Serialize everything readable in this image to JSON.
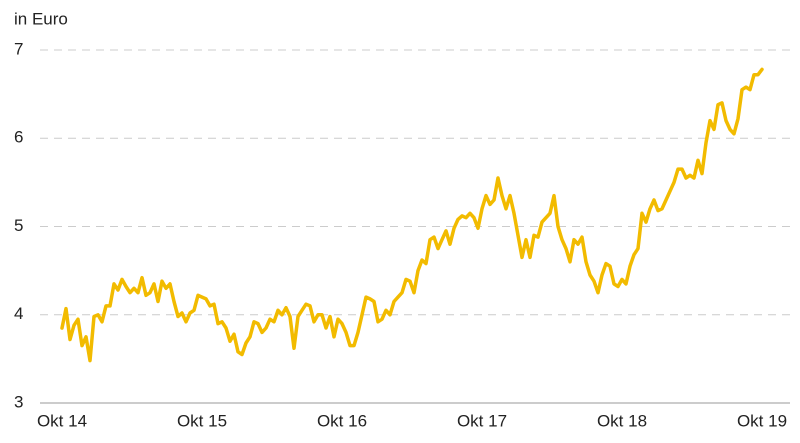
{
  "chart_data": {
    "type": "line",
    "y_label": "in Euro",
    "categories": [
      "Okt 14",
      null,
      null,
      null,
      null,
      null,
      null,
      null,
      null,
      null,
      null,
      null,
      null,
      null,
      null,
      null,
      null,
      null,
      null,
      null,
      null,
      null,
      null,
      null,
      null,
      null,
      null,
      null,
      null,
      null,
      null,
      null,
      null,
      null,
      null,
      "Okt 15",
      null,
      null,
      null,
      null,
      null,
      null,
      null,
      null,
      null,
      null,
      null,
      null,
      null,
      null,
      null,
      null,
      null,
      null,
      null,
      null,
      null,
      null,
      null,
      null,
      null,
      null,
      null,
      null,
      null,
      null,
      null,
      null,
      null,
      null,
      "Okt 16",
      null,
      null,
      null,
      null,
      null,
      null,
      null,
      null,
      null,
      null,
      null,
      null,
      null,
      null,
      null,
      null,
      null,
      null,
      null,
      null,
      null,
      null,
      null,
      null,
      null,
      null,
      null,
      null,
      null,
      null,
      null,
      null,
      null,
      null,
      "Okt 17",
      null,
      null,
      null,
      null,
      null,
      null,
      null,
      null,
      null,
      null,
      null,
      null,
      null,
      null,
      null,
      null,
      null,
      null,
      null,
      null,
      null,
      null,
      null,
      null,
      null,
      null,
      null,
      null,
      null,
      null,
      null,
      null,
      null,
      null,
      "Okt 18",
      null,
      null,
      null,
      null,
      null,
      null,
      null,
      null,
      null,
      null,
      null,
      null,
      null,
      null,
      null,
      null,
      null,
      null,
      null,
      null,
      null,
      null,
      null,
      null,
      null,
      null,
      null,
      null,
      null,
      null,
      null,
      null,
      null,
      null,
      "Okt 19"
    ],
    "values": [
      3.85,
      4.07,
      3.72,
      3.88,
      3.95,
      3.65,
      3.75,
      3.48,
      3.98,
      4.0,
      3.92,
      4.1,
      4.1,
      4.35,
      4.28,
      4.4,
      4.32,
      4.25,
      4.3,
      4.25,
      4.42,
      4.22,
      4.25,
      4.35,
      4.15,
      4.38,
      4.3,
      4.35,
      4.15,
      3.98,
      4.02,
      3.92,
      4.02,
      4.05,
      4.22,
      4.2,
      4.18,
      4.1,
      4.12,
      3.9,
      3.92,
      3.85,
      3.7,
      3.78,
      3.58,
      3.55,
      3.68,
      3.75,
      3.92,
      3.9,
      3.8,
      3.85,
      3.95,
      3.92,
      4.05,
      4.0,
      4.08,
      3.98,
      3.62,
      3.98,
      4.05,
      4.12,
      4.1,
      3.92,
      4.0,
      4.0,
      3.85,
      3.98,
      3.75,
      3.95,
      3.9,
      3.8,
      3.65,
      3.65,
      3.8,
      4.0,
      4.2,
      4.18,
      4.15,
      3.92,
      3.95,
      4.05,
      4.0,
      4.15,
      4.2,
      4.25,
      4.4,
      4.38,
      4.25,
      4.5,
      4.62,
      4.58,
      4.85,
      4.88,
      4.75,
      4.85,
      4.95,
      4.8,
      4.98,
      5.08,
      5.12,
      5.1,
      5.15,
      5.1,
      4.98,
      5.2,
      5.35,
      5.25,
      5.3,
      5.55,
      5.35,
      5.2,
      5.35,
      5.15,
      4.9,
      4.65,
      4.85,
      4.65,
      4.9,
      4.88,
      5.05,
      5.1,
      5.15,
      5.35,
      5.0,
      4.85,
      4.75,
      4.6,
      4.85,
      4.8,
      4.88,
      4.6,
      4.45,
      4.38,
      4.25,
      4.45,
      4.58,
      4.55,
      4.35,
      4.32,
      4.4,
      4.35,
      4.55,
      4.68,
      4.75,
      5.15,
      5.05,
      5.2,
      5.3,
      5.18,
      5.2,
      5.3,
      5.4,
      5.5,
      5.65,
      5.65,
      5.55,
      5.58,
      5.55,
      5.75,
      5.6,
      5.95,
      6.2,
      6.1,
      6.38,
      6.4,
      6.2,
      6.1,
      6.05,
      6.22,
      6.55,
      6.58,
      6.55,
      6.72,
      6.72,
      6.78
    ],
    "color": "#f2bb00",
    "ylim": [
      3,
      7
    ],
    "yticks": [
      3,
      4,
      5,
      6,
      7
    ],
    "grid": true
  }
}
